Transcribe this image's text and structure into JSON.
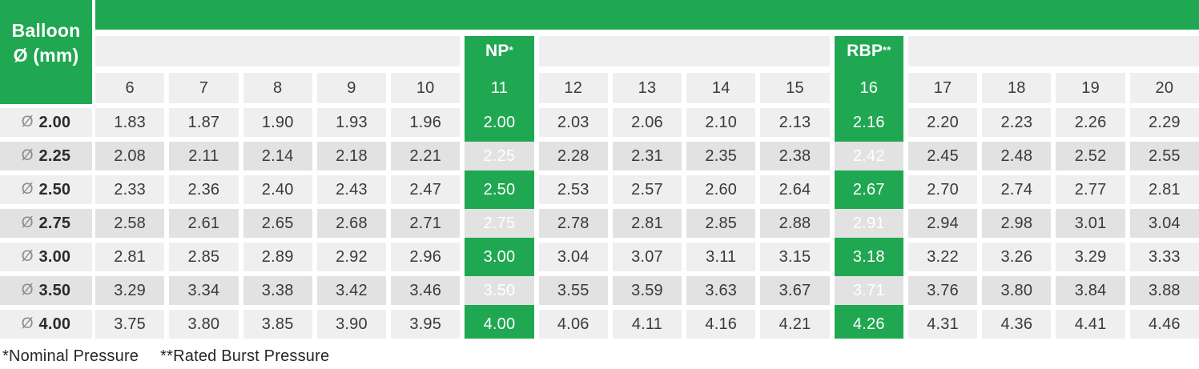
{
  "chart_data": {
    "type": "table",
    "corner": {
      "line1": "Balloon",
      "line2": "Ø (mm)"
    },
    "np": {
      "label": "NP",
      "sup": "*",
      "column": "11"
    },
    "rbp": {
      "label": "RBP",
      "sup": "**",
      "column": "16"
    },
    "column_headers": [
      "6",
      "7",
      "8",
      "9",
      "10",
      "11",
      "12",
      "13",
      "14",
      "15",
      "16",
      "17",
      "18",
      "19",
      "20"
    ],
    "rows": [
      {
        "symbol": "Ø",
        "label": "2.00",
        "values": [
          "1.83",
          "1.87",
          "1.90",
          "1.93",
          "1.96",
          "2.00",
          "2.03",
          "2.06",
          "2.10",
          "2.13",
          "2.16",
          "2.20",
          "2.23",
          "2.26",
          "2.29"
        ]
      },
      {
        "symbol": "Ø",
        "label": "2.25",
        "values": [
          "2.08",
          "2.11",
          "2.14",
          "2.18",
          "2.21",
          "2.25",
          "2.28",
          "2.31",
          "2.35",
          "2.38",
          "2.42",
          "2.45",
          "2.48",
          "2.52",
          "2.55"
        ]
      },
      {
        "symbol": "Ø",
        "label": "2.50",
        "values": [
          "2.33",
          "2.36",
          "2.40",
          "2.43",
          "2.47",
          "2.50",
          "2.53",
          "2.57",
          "2.60",
          "2.64",
          "2.67",
          "2.70",
          "2.74",
          "2.77",
          "2.81"
        ]
      },
      {
        "symbol": "Ø",
        "label": "2.75",
        "values": [
          "2.58",
          "2.61",
          "2.65",
          "2.68",
          "2.71",
          "2.75",
          "2.78",
          "2.81",
          "2.85",
          "2.88",
          "2.91",
          "2.94",
          "2.98",
          "3.01",
          "3.04"
        ]
      },
      {
        "symbol": "Ø",
        "label": "3.00",
        "values": [
          "2.81",
          "2.85",
          "2.89",
          "2.92",
          "2.96",
          "3.00",
          "3.04",
          "3.07",
          "3.11",
          "3.15",
          "3.18",
          "3.22",
          "3.26",
          "3.29",
          "3.33"
        ]
      },
      {
        "symbol": "Ø",
        "label": "3.50",
        "values": [
          "3.29",
          "3.34",
          "3.38",
          "3.42",
          "3.46",
          "3.50",
          "3.55",
          "3.59",
          "3.63",
          "3.67",
          "3.71",
          "3.76",
          "3.80",
          "3.84",
          "3.88"
        ]
      },
      {
        "symbol": "Ø",
        "label": "4.00",
        "values": [
          "3.75",
          "3.80",
          "3.85",
          "3.90",
          "3.95",
          "4.00",
          "4.06",
          "4.11",
          "4.16",
          "4.21",
          "4.26",
          "4.31",
          "4.36",
          "4.41",
          "4.46"
        ]
      }
    ],
    "footnotes": [
      "*Nominal Pressure",
      "**Rated Burst Pressure"
    ],
    "layout": {
      "np_column_highlighted": true,
      "rbp_column_highlighted": true
    },
    "colors": {
      "green": "#20a752",
      "cell_light": "#efefef",
      "cell_dark": "#e2e2e2"
    }
  }
}
